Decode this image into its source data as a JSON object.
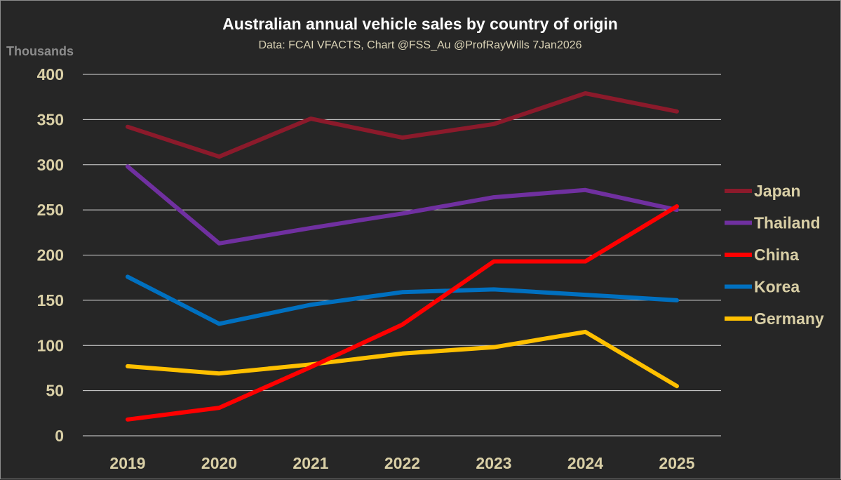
{
  "chart_data": {
    "type": "line",
    "title": "Australian annual vehicle sales by country of origin",
    "subtitle": "Data: FCAI VFACTS, Chart @FSS_Au @ProfRayWills 7Jan2026",
    "ylabel": "Thousands",
    "xlabel": "",
    "x": [
      "2019",
      "2020",
      "2021",
      "2022",
      "2023",
      "2024",
      "2025"
    ],
    "yticks": [
      "0",
      "50",
      "100",
      "150",
      "200",
      "250",
      "300",
      "350",
      "400"
    ],
    "ylim": [
      0,
      400
    ],
    "grid": true,
    "legend_position": "right",
    "series": [
      {
        "name": "Japan",
        "color": "#8b1a2b",
        "values": [
          342,
          309,
          351,
          330,
          345,
          379,
          359
        ]
      },
      {
        "name": "Thailand",
        "color": "#7030a0",
        "values": [
          298,
          213,
          230,
          246,
          264,
          272,
          250
        ]
      },
      {
        "name": "China",
        "color": "#ff0000",
        "values": [
          18,
          31,
          76,
          123,
          193,
          193,
          254
        ]
      },
      {
        "name": "Korea",
        "color": "#0070c0",
        "values": [
          176,
          124,
          145,
          159,
          162,
          156,
          150
        ]
      },
      {
        "name": "Germany",
        "color": "#ffc000",
        "values": [
          77,
          69,
          79,
          91,
          98,
          115,
          55
        ]
      }
    ]
  }
}
